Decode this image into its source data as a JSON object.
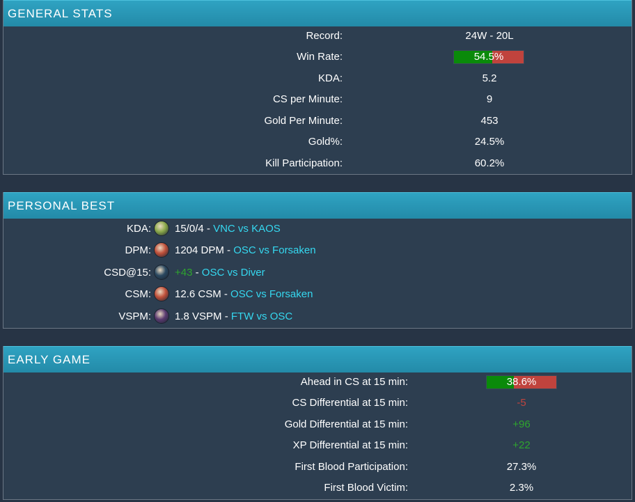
{
  "general": {
    "title": "GENERAL STATS",
    "rows": [
      {
        "label": "Record:",
        "value": "24W - 20L"
      },
      {
        "label": "Win Rate:",
        "value": "54.5%",
        "bar_fraction": 0.545
      },
      {
        "label": "KDA:",
        "value": "5.2"
      },
      {
        "label": "CS per Minute:",
        "value": "9"
      },
      {
        "label": "Gold Per Minute:",
        "value": "453"
      },
      {
        "label": "Gold%:",
        "value": "24.5%"
      },
      {
        "label": "Kill Participation:",
        "value": "60.2%"
      }
    ]
  },
  "personal_best": {
    "title": "PERSONAL BEST",
    "rows": [
      {
        "label": "KDA:",
        "stat": "15/0/4",
        "sep": " - ",
        "match": "VNC vs KAOS",
        "champion_icon": "champion-portrait-green",
        "icon_color": "#8aa84a"
      },
      {
        "label": "DPM:",
        "stat": "1204 DPM",
        "sep": " - ",
        "match": "OSC vs Forsaken",
        "champion_icon": "champion-portrait-red",
        "icon_color": "#c0503a"
      },
      {
        "label": "CSD@15:",
        "stat": "+43",
        "sep": " - ",
        "match": "OSC vs Diver",
        "champion_icon": "champion-portrait-dark",
        "icon_color": "#2a4860"
      },
      {
        "label": "CSM:",
        "stat": "12.6 CSM",
        "sep": " - ",
        "match": "OSC vs Forsaken",
        "champion_icon": "champion-portrait-red",
        "icon_color": "#c0503a"
      },
      {
        "label": "VSPM:",
        "stat": "1.8 VSPM",
        "sep": " - ",
        "match": "FTW vs OSC",
        "champion_icon": "champion-portrait-purple",
        "icon_color": "#5a3a70"
      }
    ]
  },
  "early_game": {
    "title": "EARLY GAME",
    "rows": [
      {
        "label": "Ahead in CS at 15 min:",
        "value": "38.6%",
        "bar_fraction": 0.386
      },
      {
        "label": "CS Differential at 15 min:",
        "value": "-5"
      },
      {
        "label": "Gold Differential at 15 min:",
        "value": "+96"
      },
      {
        "label": "XP Differential at 15 min:",
        "value": "+22"
      },
      {
        "label": "First Blood Participation:",
        "value": "27.3%"
      },
      {
        "label": "First Blood Victim:",
        "value": "2.3%"
      }
    ]
  },
  "colors": {
    "header": "#2b9fbd",
    "panel": "#2d3e50",
    "background": "#273445",
    "bar_positive": "#0a8a0a",
    "bar_negative": "#c0433d",
    "link": "#35d8f0",
    "positive_text": "#2ea52e",
    "negative_text": "#c0443e"
  }
}
